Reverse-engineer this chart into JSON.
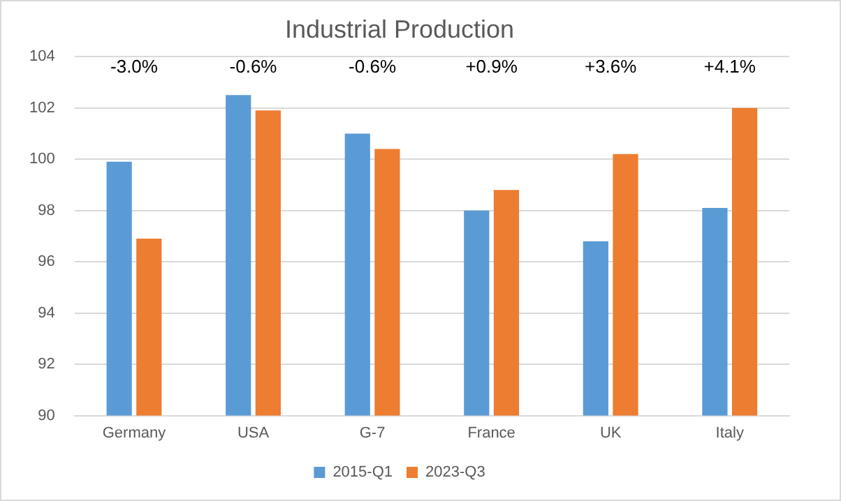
{
  "chart_data": {
    "type": "bar",
    "title": "Industrial Production",
    "categories": [
      "Germany",
      "USA",
      "G-7",
      "France",
      "UK",
      "Italy"
    ],
    "series": [
      {
        "name": "2015-Q1",
        "color": "#5b9bd5",
        "values": [
          99.9,
          102.5,
          101.0,
          98.0,
          96.8,
          98.1
        ]
      },
      {
        "name": "2023-Q3",
        "color": "#ed7d31",
        "values": [
          96.9,
          101.9,
          100.4,
          98.8,
          100.2,
          102.0
        ]
      }
    ],
    "ylim": [
      90,
      104
    ],
    "yticks": [
      90,
      92,
      94,
      96,
      98,
      100,
      102,
      104
    ],
    "grid": "y",
    "legend": "bottom",
    "annotations": [
      "-3.0%",
      "-0.6%",
      "-0.6%",
      "+0.9%",
      "+3.6%",
      "+4.1%"
    ]
  }
}
